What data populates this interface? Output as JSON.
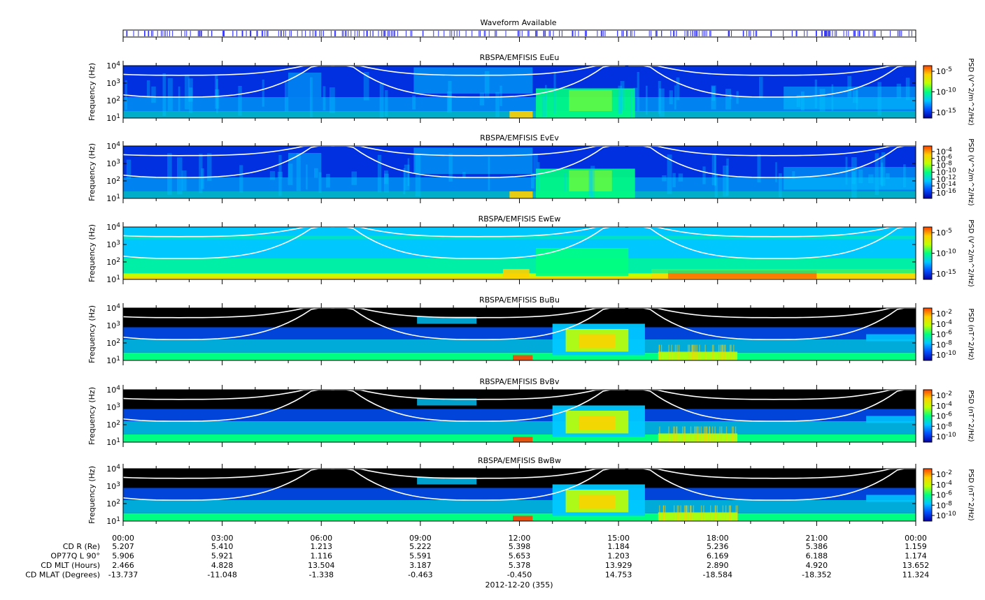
{
  "waveform": {
    "title": "Waveform Available"
  },
  "panels": [
    {
      "title": "RBSPA/EMFISIS  EuEu",
      "ylabel": "Frequency (Hz)",
      "cbar_label": "PSD (V^2/m^2/Hz)",
      "cbar_ticks": [
        "10^-5",
        "10^-10",
        "10^-15"
      ],
      "cbar_range": [
        -16,
        -4
      ],
      "style": "e"
    },
    {
      "title": "RBSPA/EMFISIS  EvEv",
      "ylabel": "Frequency (Hz)",
      "cbar_label": "PSD (V^2/m^2/Hz)",
      "cbar_ticks": [
        "10^-4",
        "10^-6",
        "10^-8",
        "10^-10",
        "10^-12",
        "10^-14",
        "10^-16"
      ],
      "cbar_range": [
        -16,
        -4
      ],
      "style": "e"
    },
    {
      "title": "RBSPA/EMFISIS  EwEw",
      "ylabel": "Frequency (Hz)",
      "cbar_label": "PSD (V^2/m^2/Hz)",
      "cbar_ticks": [
        "10^-5",
        "10^-10",
        "10^-15"
      ],
      "cbar_range": [
        -16,
        -4
      ],
      "style": "ew"
    },
    {
      "title": "RBSPA/EMFISIS  BuBu",
      "ylabel": "Frequency (Hz)",
      "cbar_label": "PSD (nT^2/Hz)",
      "cbar_ticks": [
        "10^-2",
        "10^-4",
        "10^-6",
        "10^-8",
        "10^-10"
      ],
      "cbar_range": [
        -10,
        -2
      ],
      "style": "b"
    },
    {
      "title": "RBSPA/EMFISIS  BvBv",
      "ylabel": "Frequency (Hz)",
      "cbar_label": "PSD (nT^2/Hz)",
      "cbar_ticks": [
        "10^-2",
        "10^-4",
        "10^-6",
        "10^-8",
        "10^-10"
      ],
      "cbar_range": [
        -10,
        -2
      ],
      "style": "b"
    },
    {
      "title": "RBSPA/EMFISIS  BwBw",
      "ylabel": "Frequency (Hz)",
      "cbar_label": "PSD (nT^2/Hz)",
      "cbar_ticks": [
        "10^-2",
        "10^-4",
        "10^-6",
        "10^-8",
        "10^-10"
      ],
      "cbar_range": [
        -10,
        -2
      ],
      "style": "b"
    }
  ],
  "chart_data": {
    "type": "heatmap",
    "y_scale": "log",
    "ylim": [
      10,
      10000
    ],
    "y_ticks": [
      "10^4",
      "10^3",
      "10^2",
      "10^1"
    ],
    "x_ticks": [
      "00:00",
      "03:00",
      "06:00",
      "09:00",
      "12:00",
      "15:00",
      "18:00",
      "21:00",
      "00:00"
    ],
    "x_range_hours": [
      0,
      24
    ],
    "date_label": "2012-12-20 (355)",
    "ephemeris_labels": [
      "CD R (Re)",
      "OP77Q L 90°",
      "CD MLT (Hours)",
      "CD MLAT (Degrees)"
    ],
    "ephemeris_rows": [
      [
        "5.207",
        "5.410",
        "1.213",
        "5.222",
        "5.398",
        "1.184",
        "5.236",
        "5.386",
        "1.159"
      ],
      [
        "5.906",
        "5.921",
        "1.116",
        "5.591",
        "5.653",
        "1.203",
        "6.169",
        "6.188",
        "1.174"
      ],
      [
        "2.466",
        "4.828",
        "13.504",
        "3.187",
        "5.378",
        "13.929",
        "2.890",
        "4.920",
        "13.652"
      ],
      [
        "-13.737",
        "-11.048",
        "-1.338",
        "-0.463",
        "-0.450",
        "14.753",
        "-18.584",
        "-18.352",
        "11.324"
      ]
    ],
    "overlay_lines": "white gyrofrequency curves (upper and lower)",
    "colorscale": [
      "#0000a8",
      "#0050ff",
      "#00c8ff",
      "#00ff80",
      "#c0ff00",
      "#ffd000",
      "#ff4000"
    ]
  }
}
